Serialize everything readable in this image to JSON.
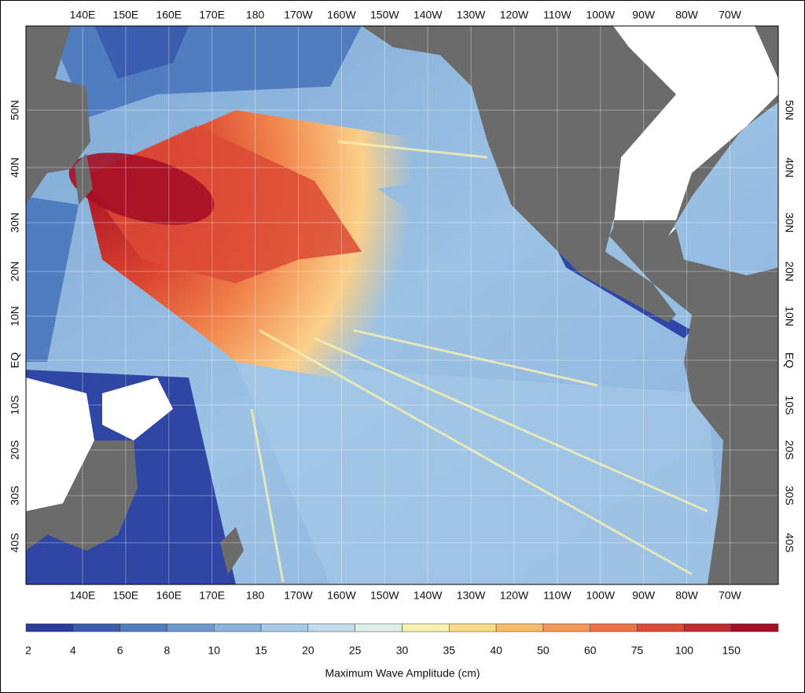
{
  "lon_labels": [
    "140E",
    "150E",
    "160E",
    "170E",
    "180",
    "170W",
    "160W",
    "150W",
    "140W",
    "130W",
    "120W",
    "110W",
    "100W",
    "90W",
    "80W",
    "70W"
  ],
  "lat_labels": [
    "50N",
    "40N",
    "30N",
    "20N",
    "10N",
    "EQ",
    "10S",
    "20S",
    "30S",
    "40S"
  ],
  "colorbar": {
    "label": "Maximum Wave Amplitude (cm)",
    "ticks": [
      2,
      4,
      6,
      8,
      10,
      15,
      20,
      25,
      30,
      35,
      40,
      50,
      60,
      75,
      100,
      150
    ],
    "colors": [
      "#2b3c9c",
      "#3a5db0",
      "#4f7dc0",
      "#6b99cd",
      "#88b3da",
      "#a6cae7",
      "#c3ddef",
      "#e0efe6",
      "#f8f1b0",
      "#fbda88",
      "#fbbb6b",
      "#f59756",
      "#ed7345",
      "#dc4a35",
      "#c42b2e",
      "#a50f26"
    ]
  }
}
